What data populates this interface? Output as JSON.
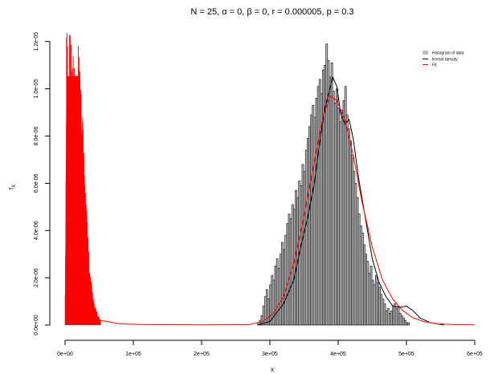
{
  "chart_data": {
    "type": "histogram",
    "title": "N = 25, α = 0, β = 0, r = 0.000005, p = 0.3",
    "xlabel": "x",
    "ylabel": "f",
    "ylabel_subscript": "X",
    "xlim": [
      0,
      600000
    ],
    "ylim": [
      0,
      1.24e-05
    ],
    "x_ticks": [
      0,
      100000,
      200000,
      300000,
      400000,
      500000,
      600000
    ],
    "x_tick_labels": [
      "0e+00",
      "1e+05",
      "2e+05",
      "3e+05",
      "4e+05",
      "5e+05",
      "6e+05"
    ],
    "y_ticks": [
      0,
      2e-06,
      4e-06,
      6e-06,
      8e-06,
      1e-05,
      1.2e-05
    ],
    "y_tick_labels": [
      "0.0e+00",
      "2.0e-06",
      "4.0e-06",
      "6.0e-06",
      "8.0e-06",
      "1.0e-05",
      "1.2e-05"
    ],
    "legend": {
      "position": "top-right",
      "entries": [
        {
          "label": "Histogram of data",
          "symbol": "box",
          "color": "#bebebe"
        },
        {
          "label": "Kernel density",
          "symbol": "line",
          "color": "#000000"
        },
        {
          "label": "Fit",
          "symbol": "line",
          "color": "#ff0000"
        }
      ]
    },
    "histogram": {
      "bin_start": 282000,
      "bin_width": 2500,
      "densities": [
        1e-07,
        2e-07,
        4e-07,
        8e-07,
        1.2e-06,
        1.5e-06,
        1.1e-06,
        1.7e-06,
        2.1e-06,
        1.9e-06,
        2.5e-06,
        2.8e-06,
        2.4e-06,
        3e-06,
        3.5e-06,
        3.2e-06,
        3.8e-06,
        4.3e-06,
        4.7e-06,
        4.5e-06,
        5.1e-06,
        4.9e-06,
        5.7e-06,
        5.4e-06,
        6.1e-06,
        5.9e-06,
        6.8e-06,
        6.5e-06,
        7.4e-06,
        7.9e-06,
        8.4e-06,
        8.9e-06,
        9.3e-06,
        8.8e-06,
        9.6e-06,
        1.01e-05,
        1.04e-05,
        9.8e-06,
        1.08e-05,
        1.1e-05,
        1.19e-05,
        1.12e-05,
        1.05e-05,
        1.11e-05,
        9.9e-06,
        9.4e-06,
        1e-05,
        9.2e-06,
        8.6e-06,
        9.1e-06,
        9.5e-06,
        1.01e-05,
        8.9e-06,
        8.3e-06,
        7.8e-06,
        7.2e-06,
        6.5e-06,
        6e-06,
        5.4e-06,
        4.7e-06,
        4.2e-06,
        3.9e-06,
        3.4e-06,
        3e-06,
        2.7e-06,
        2.2e-06,
        2.5e-06,
        1.9e-06,
        1.7e-06,
        2.1e-06,
        1.8e-06,
        1.6e-06,
        1.3e-06,
        1.1e-06,
        9e-07,
        6e-07,
        7e-07,
        5e-07,
        6e-07,
        8e-07,
        9e-07,
        7e-07,
        8e-07,
        5e-07,
        4e-07,
        3e-07,
        2e-07,
        1e-07,
        1e-07
      ]
    },
    "kernel_density": {
      "x": [
        282000,
        300000,
        320000,
        335000,
        345000,
        355000,
        365000,
        372000,
        380000,
        386000,
        392000,
        398000,
        404000,
        410000,
        416000,
        422000,
        430000,
        440000,
        450000,
        460000,
        470000,
        480000,
        490000,
        500000,
        510000,
        520000,
        535000,
        555000
      ],
      "y": [
        0,
        1.5e-07,
        9e-07,
        1.9e-06,
        3.3e-06,
        4.5e-06,
        6e-06,
        7.5e-06,
        9.1e-06,
        9.8e-06,
        1.05e-05,
        1.01e-05,
        8.9e-06,
        8.5e-06,
        8.7e-06,
        7.9e-06,
        6.2e-06,
        4.5e-06,
        2.8e-06,
        1.8e-06,
        1.2e-06,
        8e-07,
        7.5e-07,
        8e-07,
        6e-07,
        3e-07,
        1e-07,
        0
      ]
    },
    "fit": {
      "spike_region": {
        "x_start": 0,
        "x_end": 52000,
        "max_density": 1.24e-05
      },
      "x": [
        52000,
        80000,
        120000,
        200000,
        270000,
        290000,
        305000,
        320000,
        335000,
        350000,
        365000,
        378000,
        388000,
        398000,
        410000,
        422000,
        435000,
        450000,
        465000,
        480000,
        495000,
        510000,
        525000,
        545000,
        570000,
        600000
      ],
      "y": [
        2e-07,
        5e-08,
        2e-08,
        1e-08,
        2e-08,
        1.5e-07,
        5e-07,
        1.2e-06,
        2.6e-06,
        4.6e-06,
        6.9e-06,
        8.8e-06,
        9.7e-06,
        9.5e-06,
        8.7e-06,
        7.2e-06,
        5.2e-06,
        3.3e-06,
        1.9e-06,
        1.1e-06,
        6e-07,
        3e-07,
        1.5e-07,
        5e-08,
        2e-08,
        1e-08
      ]
    }
  }
}
